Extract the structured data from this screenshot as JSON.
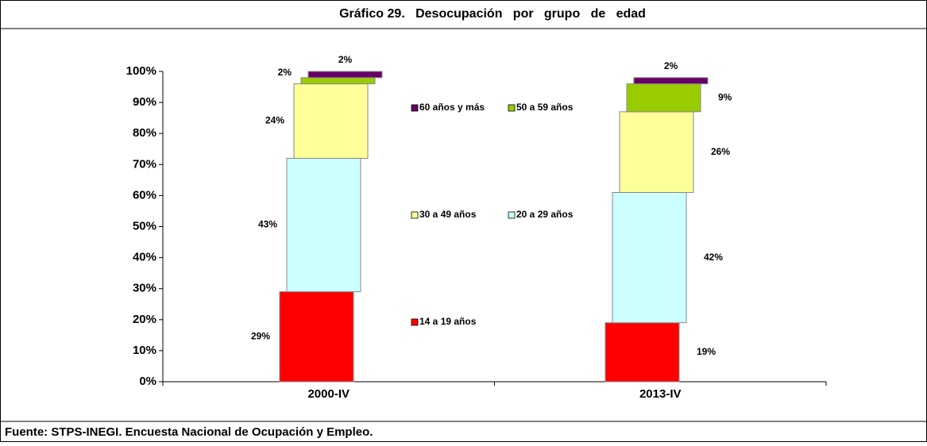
{
  "chart_data": {
    "type": "bar",
    "stacked": true,
    "title": "Gráfico 29.   Desocupación   por   grupo   de   edad",
    "source": "Fuente: STPS-INEGI. Encuesta Nacional de Ocupación y Empleo.",
    "categories": [
      "2000-IV",
      "2013-IV"
    ],
    "series": [
      {
        "name": "14 a 19 años",
        "color": "#ff0000",
        "values": [
          29,
          19
        ],
        "value_labels": [
          "29%",
          "19%"
        ]
      },
      {
        "name": "20 a 29 años",
        "color": "#ccffff",
        "values": [
          43,
          42
        ],
        "value_labels": [
          "43%",
          "42%"
        ]
      },
      {
        "name": "30 a 49 años",
        "color": "#ffff99",
        "values": [
          24,
          26
        ],
        "value_labels": [
          "24%",
          "26%"
        ]
      },
      {
        "name": "50 a 59 años",
        "color": "#99cc00",
        "values": [
          2,
          9
        ],
        "value_labels": [
          "2%",
          "9%"
        ]
      },
      {
        "name": "60 años y más",
        "color": "#660066",
        "values": [
          2,
          2
        ],
        "value_labels": [
          "2%",
          "2%"
        ]
      }
    ],
    "ylim": [
      0,
      100
    ],
    "yticks": [
      {
        "value": 0,
        "label": "0%"
      },
      {
        "value": 10,
        "label": "10%"
      },
      {
        "value": 20,
        "label": "20%"
      },
      {
        "value": 30,
        "label": "30%"
      },
      {
        "value": 40,
        "label": "40%"
      },
      {
        "value": 50,
        "label": "50%"
      },
      {
        "value": 60,
        "label": "60%"
      },
      {
        "value": 70,
        "label": "70%"
      },
      {
        "value": 80,
        "label": "80%"
      },
      {
        "value": 90,
        "label": "90%"
      },
      {
        "value": 100,
        "label": "100%"
      }
    ]
  }
}
